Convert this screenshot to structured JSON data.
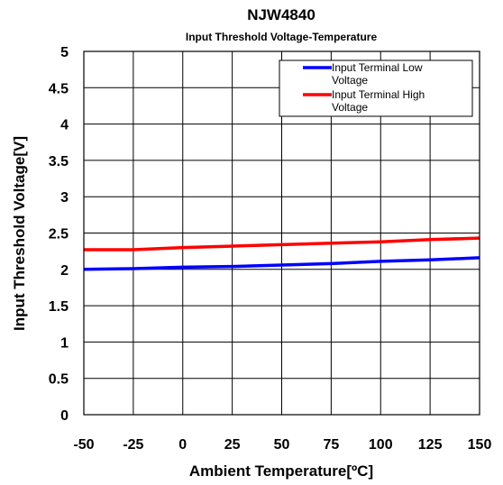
{
  "chart_data": {
    "type": "line",
    "title": "NJW4840",
    "subtitle": "Input Threshold Voltage-Temperature",
    "xlabel": "Ambient Temperature[ºC]",
    "ylabel": "Input Threshold Voltage[V]",
    "xlim": [
      -50,
      150
    ],
    "ylim": [
      0,
      5
    ],
    "xticks": [
      -50,
      -25,
      0,
      25,
      50,
      75,
      100,
      125,
      150
    ],
    "yticks": [
      0,
      0.5,
      1,
      1.5,
      2,
      2.5,
      3,
      3.5,
      4,
      4.5,
      5
    ],
    "xtick_labels": [
      "-50",
      "-25",
      "0",
      "25",
      "50",
      "75",
      "100",
      "125",
      "150"
    ],
    "ytick_labels": [
      "0",
      "0.5",
      "1",
      "1.5",
      "2",
      "2.5",
      "3",
      "3.5",
      "4",
      "4.5",
      "5"
    ],
    "grid": true,
    "legend_position": "top-right",
    "series": [
      {
        "name": "Input Terminal Low Voltage",
        "legend_lines": [
          "Input Terminal Low",
          "Voltage"
        ],
        "color": "#0000ff",
        "x": [
          -50,
          -25,
          0,
          25,
          50,
          75,
          100,
          125,
          150
        ],
        "y": [
          2.0,
          2.01,
          2.03,
          2.04,
          2.06,
          2.08,
          2.11,
          2.13,
          2.16
        ]
      },
      {
        "name": "Input Terminal High Voltage",
        "legend_lines": [
          "Input Terminal High",
          "Voltage"
        ],
        "color": "#ff0000",
        "x": [
          -50,
          -25,
          0,
          25,
          50,
          75,
          100,
          125,
          150
        ],
        "y": [
          2.27,
          2.27,
          2.3,
          2.32,
          2.34,
          2.36,
          2.38,
          2.41,
          2.43
        ]
      }
    ]
  }
}
